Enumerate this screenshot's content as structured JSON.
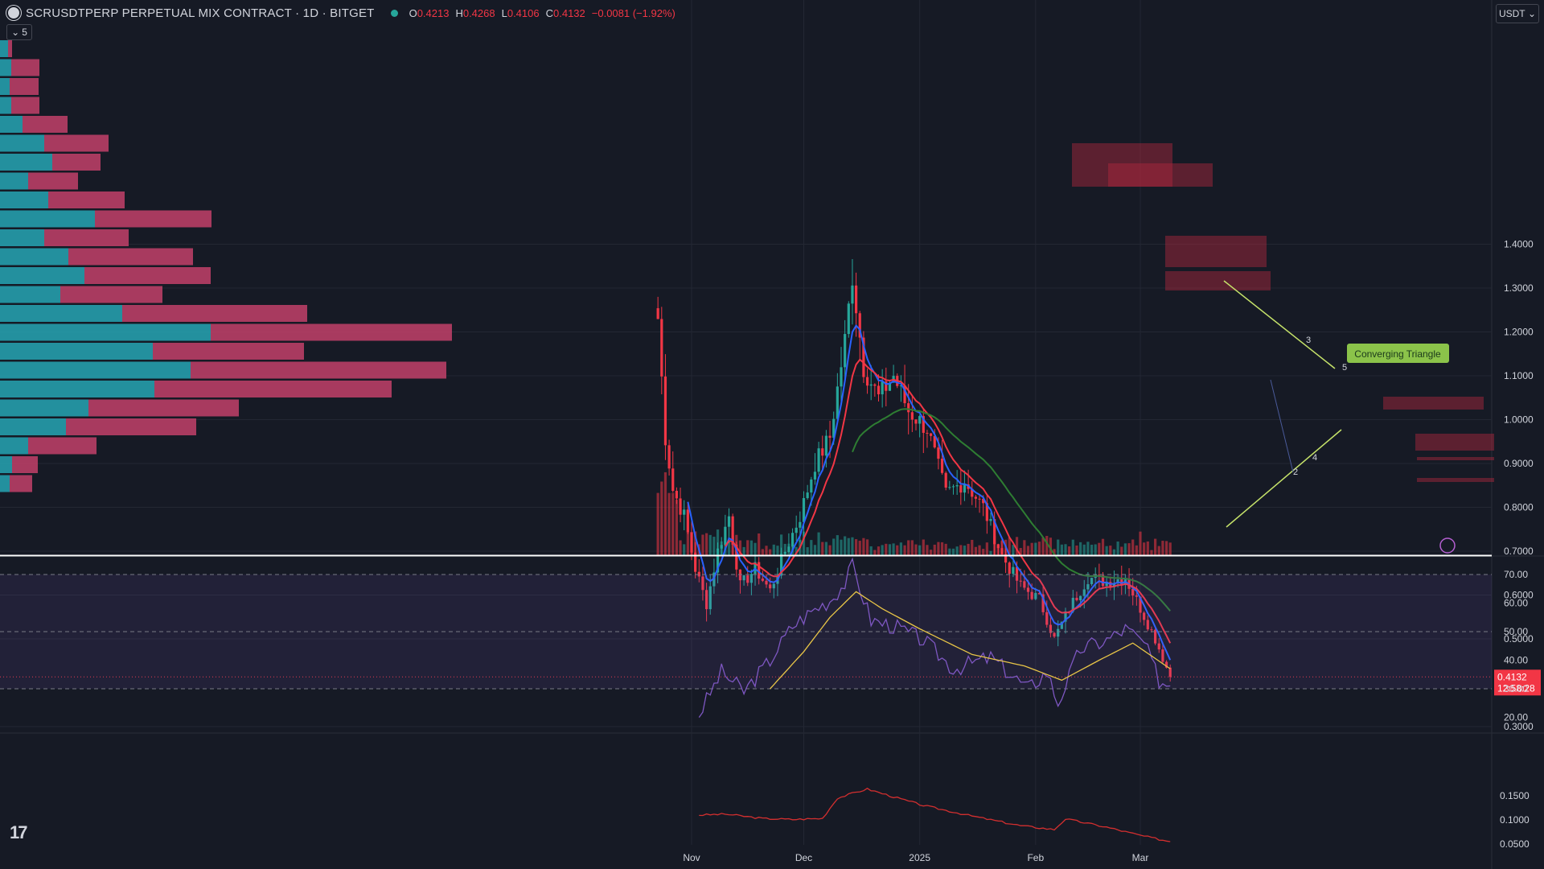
{
  "header": {
    "title": "SCRUSDTPERP PERPETUAL MIX CONTRACT · 1D · BITGET",
    "ohlc": [
      {
        "k": "O",
        "v": "0.4213"
      },
      {
        "k": "H",
        "v": "0.4268"
      },
      {
        "k": "L",
        "v": "0.4106"
      },
      {
        "k": "C",
        "v": "0.4132"
      },
      {
        "k": "",
        "v": "−0.0081 (−1.92%)"
      }
    ],
    "status_color": "#26a69a"
  },
  "controls": {
    "collapse_label": "5",
    "currency": "USDT"
  },
  "price_tag": {
    "price": "0.4132",
    "countdown": "12:58:28"
  },
  "logo_text": "17",
  "pattern_label": "Converging Triangle",
  "wave_labels": [
    "2",
    "3",
    "4",
    "5"
  ],
  "colors": {
    "up": "#26a69a",
    "down": "#f23645",
    "ema_fast": "#2962ff",
    "ema_mid": "#f23645",
    "ema_slow": "#2e7d32",
    "rsi": "#7e57c2",
    "rsi_ma": "#e8c547",
    "vp_up": "#26a6b4",
    "vp_down": "#c2416a"
  },
  "chart_data": [
    {
      "type": "candlestick",
      "title": "SCRUSDTPERP PERPETUAL MIX CONTRACT · 1D · BITGET",
      "x_labels": [
        "Nov",
        "Dec",
        "2025",
        "Feb",
        "Mar"
      ],
      "y_ticks": [
        "1.4000",
        "1.3000",
        "1.2000",
        "1.1000",
        "1.0000",
        "0.9000",
        "0.8000",
        "0.7000",
        "0.6000",
        "0.5000",
        "0.3000"
      ],
      "ylim": [
        0.28,
        1.46
      ],
      "horizontal_line": 0.69,
      "last_close": 0.4132,
      "close_path": [
        {
          "date": "2024-10-23",
          "close": 1.23
        },
        {
          "date": "2024-10-25",
          "close": 0.96
        },
        {
          "date": "2024-10-27",
          "close": 0.84
        },
        {
          "date": "2024-10-30",
          "close": 0.78
        },
        {
          "date": "2024-11-02",
          "close": 0.66
        },
        {
          "date": "2024-11-05",
          "close": 0.58
        },
        {
          "date": "2024-11-08",
          "close": 0.7
        },
        {
          "date": "2024-11-11",
          "close": 0.78
        },
        {
          "date": "2024-11-14",
          "close": 0.62
        },
        {
          "date": "2024-11-18",
          "close": 0.66
        },
        {
          "date": "2024-11-22",
          "close": 0.61
        },
        {
          "date": "2024-11-26",
          "close": 0.7
        },
        {
          "date": "2024-11-30",
          "close": 0.78
        },
        {
          "date": "2024-12-04",
          "close": 0.9
        },
        {
          "date": "2024-12-08",
          "close": 0.96
        },
        {
          "date": "2024-12-12",
          "close": 1.18
        },
        {
          "date": "2024-12-14",
          "close": 1.33
        },
        {
          "date": "2024-12-17",
          "close": 1.12
        },
        {
          "date": "2024-12-21",
          "close": 1.05
        },
        {
          "date": "2024-12-25",
          "close": 1.1
        },
        {
          "date": "2024-12-29",
          "close": 1.02
        },
        {
          "date": "2025-01-03",
          "close": 0.98
        },
        {
          "date": "2025-01-08",
          "close": 0.83
        },
        {
          "date": "2025-01-13",
          "close": 0.86
        },
        {
          "date": "2025-01-18",
          "close": 0.8
        },
        {
          "date": "2025-01-23",
          "close": 0.69
        },
        {
          "date": "2025-01-28",
          "close": 0.62
        },
        {
          "date": "2025-02-02",
          "close": 0.59
        },
        {
          "date": "2025-02-06",
          "close": 0.5
        },
        {
          "date": "2025-02-10",
          "close": 0.57
        },
        {
          "date": "2025-02-15",
          "close": 0.64
        },
        {
          "date": "2025-02-20",
          "close": 0.63
        },
        {
          "date": "2025-02-25",
          "close": 0.64
        },
        {
          "date": "2025-03-01",
          "close": 0.57
        },
        {
          "date": "2025-03-05",
          "close": 0.5
        },
        {
          "date": "2025-03-09",
          "close": 0.4132
        }
      ],
      "indicators": [
        "EMA fast (blue)",
        "EMA mid (red)",
        "EMA slow (green)",
        "Volume Profile",
        "Volume"
      ]
    },
    {
      "type": "line",
      "name_in_chart": "RSI",
      "y_ticks": [
        "70.00",
        "60.00",
        "50.00",
        "40.00",
        "30.00",
        "20.00"
      ],
      "ylim": [
        15,
        75
      ],
      "bands": [
        30,
        50,
        70
      ],
      "series": [
        {
          "values": [
            {
              "date": "2024-11-03",
              "value": 21
            },
            {
              "date": "2024-11-09",
              "value": 36
            },
            {
              "date": "2024-11-15",
              "value": 29
            },
            {
              "date": "2024-11-22",
              "value": 40
            },
            {
              "date": "2024-11-28",
              "value": 52
            },
            {
              "date": "2024-12-04",
              "value": 58
            },
            {
              "date": "2024-12-08",
              "value": 61
            },
            {
              "date": "2024-12-12",
              "value": 67
            },
            {
              "date": "2024-12-14",
              "value": 73
            },
            {
              "date": "2024-12-19",
              "value": 54
            },
            {
              "date": "2024-12-25",
              "value": 52
            },
            {
              "date": "2025-01-02",
              "value": 47
            },
            {
              "date": "2025-01-10",
              "value": 37
            },
            {
              "date": "2025-01-20",
              "value": 41
            },
            {
              "date": "2025-01-30",
              "value": 30
            },
            {
              "date": "2025-02-04",
              "value": 36
            },
            {
              "date": "2025-02-07",
              "value": 25
            },
            {
              "date": "2025-02-13",
              "value": 44
            },
            {
              "date": "2025-02-20",
              "value": 47
            },
            {
              "date": "2025-02-25",
              "value": 51
            },
            {
              "date": "2025-03-02",
              "value": 46
            },
            {
              "date": "2025-03-06",
              "value": 33
            },
            {
              "date": "2025-03-09",
              "value": 31
            }
          ]
        },
        {
          "values": [
            {
              "date": "2024-11-22",
              "value": 30
            },
            {
              "date": "2024-12-01",
              "value": 43
            },
            {
              "date": "2024-12-08",
              "value": 55
            },
            {
              "date": "2024-12-15",
              "value": 64
            },
            {
              "date": "2024-12-22",
              "value": 58
            },
            {
              "date": "2025-01-01",
              "value": 51
            },
            {
              "date": "2025-01-15",
              "value": 42
            },
            {
              "date": "2025-01-29",
              "value": 38
            },
            {
              "date": "2025-02-08",
              "value": 33
            },
            {
              "date": "2025-02-18",
              "value": 40
            },
            {
              "date": "2025-02-27",
              "value": 46
            },
            {
              "date": "2025-03-09",
              "value": 37
            }
          ]
        }
      ]
    },
    {
      "type": "line",
      "y_ticks": [
        "0.1500",
        "0.1000",
        "0.0500"
      ],
      "ylim": [
        0.05,
        0.17
      ],
      "series": [
        {
          "values": [
            {
              "date": "2024-11-03",
              "value": 0.11
            },
            {
              "date": "2024-11-10",
              "value": 0.112
            },
            {
              "date": "2024-11-20",
              "value": 0.103
            },
            {
              "date": "2024-11-28",
              "value": 0.101
            },
            {
              "date": "2024-12-06",
              "value": 0.103
            },
            {
              "date": "2024-12-10",
              "value": 0.145
            },
            {
              "date": "2024-12-14",
              "value": 0.155
            },
            {
              "date": "2024-12-18",
              "value": 0.164
            },
            {
              "date": "2024-12-24",
              "value": 0.15
            },
            {
              "date": "2025-01-02",
              "value": 0.13
            },
            {
              "date": "2025-01-15",
              "value": 0.108
            },
            {
              "date": "2025-01-28",
              "value": 0.088
            },
            {
              "date": "2025-02-06",
              "value": 0.08
            },
            {
              "date": "2025-02-09",
              "value": 0.102
            },
            {
              "date": "2025-02-20",
              "value": 0.085
            },
            {
              "date": "2025-03-01",
              "value": 0.068
            },
            {
              "date": "2025-03-09",
              "value": 0.055
            }
          ]
        }
      ]
    }
  ]
}
